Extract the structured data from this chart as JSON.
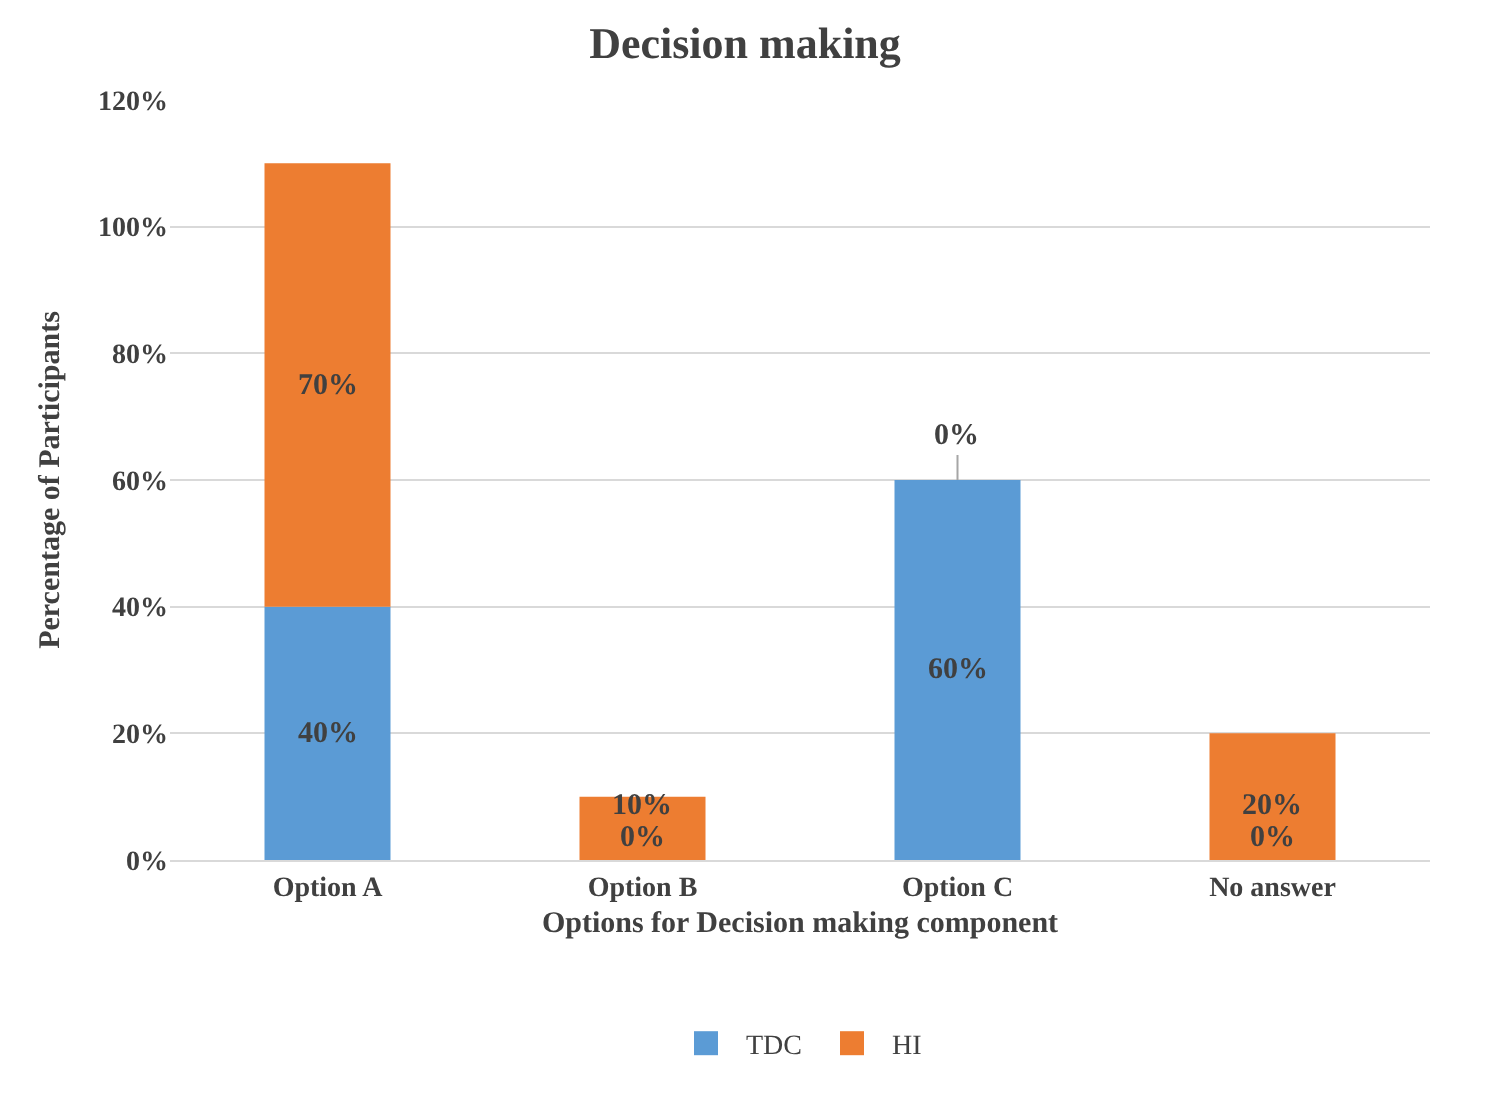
{
  "chart_data": {
    "type": "bar",
    "stacked": true,
    "title": "Decision making",
    "xlabel": "Options for Decision making component",
    "ylabel": "Percentage of Participants",
    "categories": [
      "Option A",
      "Option B",
      "Option C",
      "No answer"
    ],
    "series": [
      {
        "name": "TDC",
        "color": "#5b9bd5",
        "values": [
          40,
          0,
          60,
          0
        ],
        "value_labels": [
          "40%",
          "0%",
          "60%",
          "0%"
        ]
      },
      {
        "name": "HI",
        "color": "#ed7d31",
        "values": [
          70,
          10,
          0,
          20
        ],
        "value_labels": [
          "70%",
          "10%",
          "0%",
          "20%"
        ]
      }
    ],
    "ylim": [
      0,
      120
    ],
    "yticks": [
      {
        "value": 0,
        "label": "0%"
      },
      {
        "value": 20,
        "label": "20%"
      },
      {
        "value": 40,
        "label": "40%"
      },
      {
        "value": 60,
        "label": "60%"
      },
      {
        "value": 80,
        "label": "80%"
      },
      {
        "value": 100,
        "label": "100%"
      },
      {
        "value": 120,
        "label": "120%"
      }
    ],
    "grid": "y",
    "legend": "bottom"
  }
}
